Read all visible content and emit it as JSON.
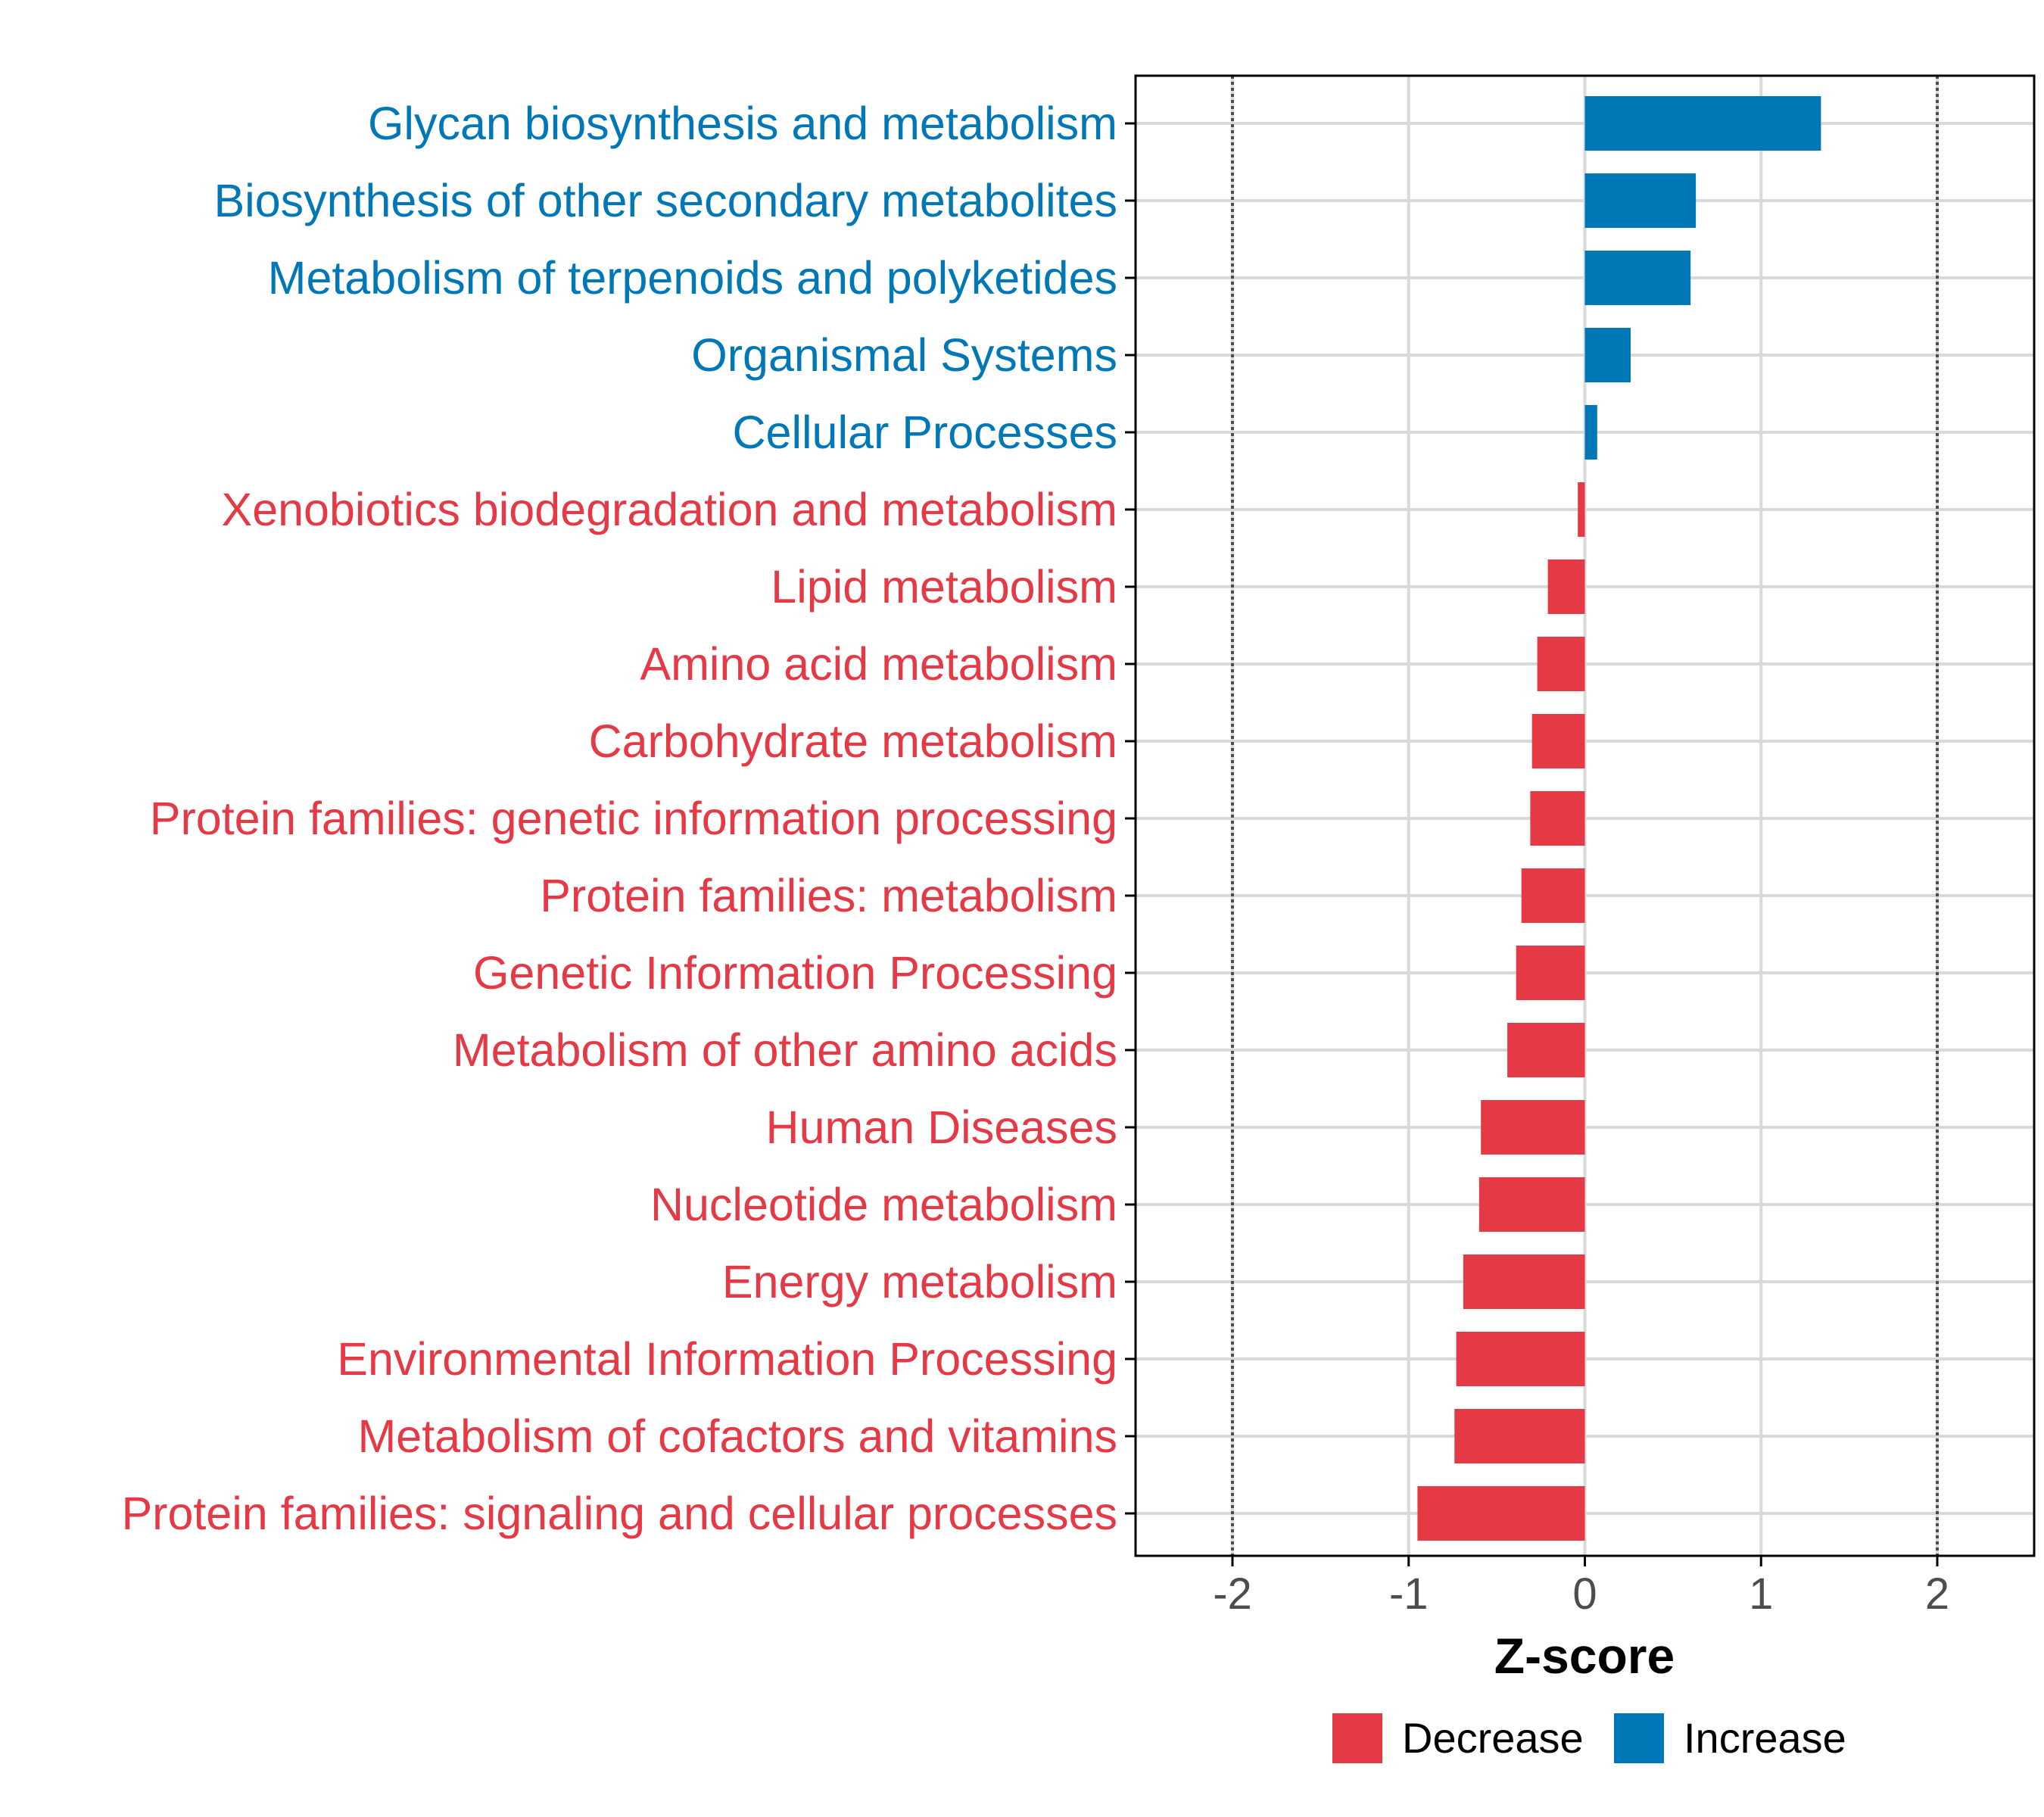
{
  "chart_data": {
    "type": "bar",
    "orientation": "horizontal",
    "title": "",
    "xlabel": "Z-score",
    "ylabel": "",
    "xlim": [
      -2.55,
      2.55
    ],
    "xticks": [
      -2,
      -1,
      0,
      1,
      2
    ],
    "xtick_labels": [
      "-2",
      "-1",
      "0",
      "1",
      "2"
    ],
    "reference_lines": [
      -2,
      2
    ],
    "grid": true,
    "legend_position": "bottom",
    "categories": [
      "Glycan biosynthesis and metabolism",
      "Biosynthesis of other secondary metabolites",
      "Metabolism of terpenoids and polyketides",
      "Organismal Systems",
      "Cellular Processes",
      "Xenobiotics biodegradation and metabolism",
      "Lipid metabolism",
      "Amino acid metabolism",
      "Carbohydrate metabolism",
      "Protein families: genetic information processing",
      "Protein families: metabolism",
      "Genetic Information Processing",
      "Metabolism of other amino acids",
      "Human Diseases",
      "Nucleotide metabolism",
      "Energy metabolism",
      "Environmental Information Processing",
      "Metabolism of cofactors and vitamins",
      "Protein families: signaling and cellular processes"
    ],
    "values": [
      1.34,
      0.63,
      0.6,
      0.26,
      0.07,
      -0.04,
      -0.21,
      -0.27,
      -0.3,
      -0.31,
      -0.36,
      -0.39,
      -0.44,
      -0.59,
      -0.6,
      -0.69,
      -0.73,
      -0.74,
      -0.95
    ],
    "groups": [
      "Increase",
      "Increase",
      "Increase",
      "Increase",
      "Increase",
      "Decrease",
      "Decrease",
      "Decrease",
      "Decrease",
      "Decrease",
      "Decrease",
      "Decrease",
      "Decrease",
      "Decrease",
      "Decrease",
      "Decrease",
      "Decrease",
      "Decrease",
      "Decrease"
    ],
    "legend": [
      {
        "name": "Decrease",
        "color": "#e63946"
      },
      {
        "name": "Increase",
        "color": "#0077b6"
      }
    ]
  },
  "colors": {
    "increase": "#0077b6",
    "decrease": "#e63946",
    "grid": "#d9d9d9",
    "axis": "#000000",
    "reference_line": "#4d4d4d"
  }
}
